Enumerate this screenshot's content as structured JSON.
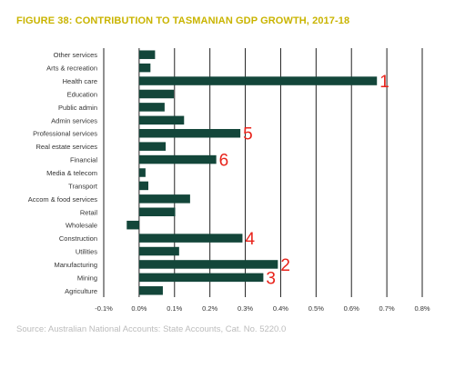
{
  "title": "FIGURE 38: CONTRIBUTION TO TASMANIAN GDP GROWTH, 2017-18",
  "source": "Source: Australian National Accounts: State Accounts, Cat. No. 5220.0",
  "colors": {
    "title": "#c9b400",
    "bar": "#13463a",
    "rank_label": "#e8231b",
    "source": "#bcbcbc",
    "gridline": "#222222"
  },
  "chart_data": {
    "type": "bar",
    "orientation": "horizontal",
    "categories": [
      "Other services",
      "Arts & recreation",
      "Health care",
      "Education",
      "Public admin",
      "Admin services",
      "Professional services",
      "Real estate services",
      "Financial",
      "Media & telecom",
      "Transport",
      "Accom & food services",
      "Retail",
      "Wholesale",
      "Construction",
      "Utilities",
      "Manufacturing",
      "Mining",
      "Agriculture"
    ],
    "values": [
      0.045,
      0.032,
      0.672,
      0.098,
      0.072,
      0.127,
      0.286,
      0.075,
      0.218,
      0.018,
      0.026,
      0.144,
      0.102,
      -0.035,
      0.292,
      0.113,
      0.392,
      0.351,
      0.067
    ],
    "xlim": [
      -0.1,
      0.8
    ],
    "xticks": [
      -0.1,
      0.0,
      0.1,
      0.2,
      0.3,
      0.4,
      0.5,
      0.6,
      0.7,
      0.8
    ],
    "xtick_labels": [
      "-0.1%",
      "0.0%",
      "0.1%",
      "0.2%",
      "0.3%",
      "0.4%",
      "0.5%",
      "0.6%",
      "0.7%",
      "0.8%"
    ],
    "grid": "vertical",
    "annotations": [
      {
        "category": "Health care",
        "text": "1"
      },
      {
        "category": "Manufacturing",
        "text": "2"
      },
      {
        "category": "Mining",
        "text": "3"
      },
      {
        "category": "Construction",
        "text": "4"
      },
      {
        "category": "Professional services",
        "text": "5"
      },
      {
        "category": "Financial",
        "text": "6"
      }
    ]
  }
}
